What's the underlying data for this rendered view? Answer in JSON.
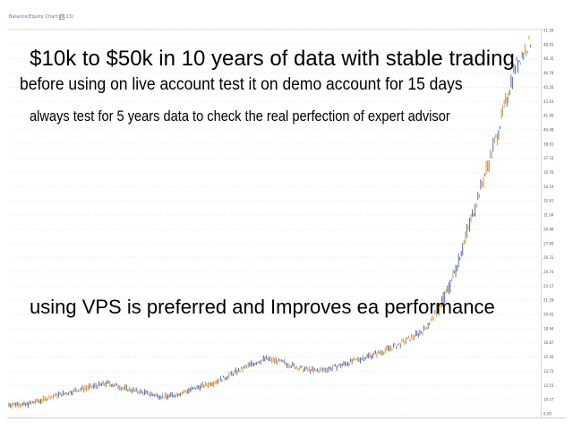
{
  "window": {
    "title": "Balance/Equity Chart (6.13)"
  },
  "overlay_text": {
    "line1": "$10k to $50k in  10 years of data with stable trading",
    "line2": "before using on live account test it on demo account for 15 days",
    "line3": "always test for 5 years data to check the real perfection of expert advisor",
    "line4": "using VPS is preferred and Improves ea performance"
  },
  "colors": {
    "bar_blue": "#4a5fb0",
    "bar_orange": "#e08a1c",
    "grid": "#e6e6e6"
  },
  "chart_data": {
    "type": "line",
    "title": "",
    "xlabel": "",
    "ylabel": "",
    "series": [
      {
        "values": [
          10000,
          10100,
          10000,
          10300,
          10500,
          10900,
          11100,
          11300,
          11600,
          11800,
          12000,
          12200,
          12400,
          12100,
          11800,
          11600,
          11400,
          11200,
          11000,
          10900,
          11100,
          11400,
          11700,
          12000,
          12300,
          12600,
          13000,
          13500,
          13900,
          14400,
          14800,
          15100,
          14900,
          14700,
          14400,
          14100,
          13900,
          13800,
          13900,
          14100,
          14400,
          14700,
          15000,
          15300,
          15600,
          15900,
          16300,
          16700,
          17200,
          17700,
          18300,
          19500,
          21000,
          23000,
          25500,
          28500,
          31500,
          34500,
          37500,
          40500,
          44000,
          47500,
          49000,
          50500
        ]
      }
    ],
    "ylim": [
      9000,
      51500
    ],
    "grid": true
  }
}
